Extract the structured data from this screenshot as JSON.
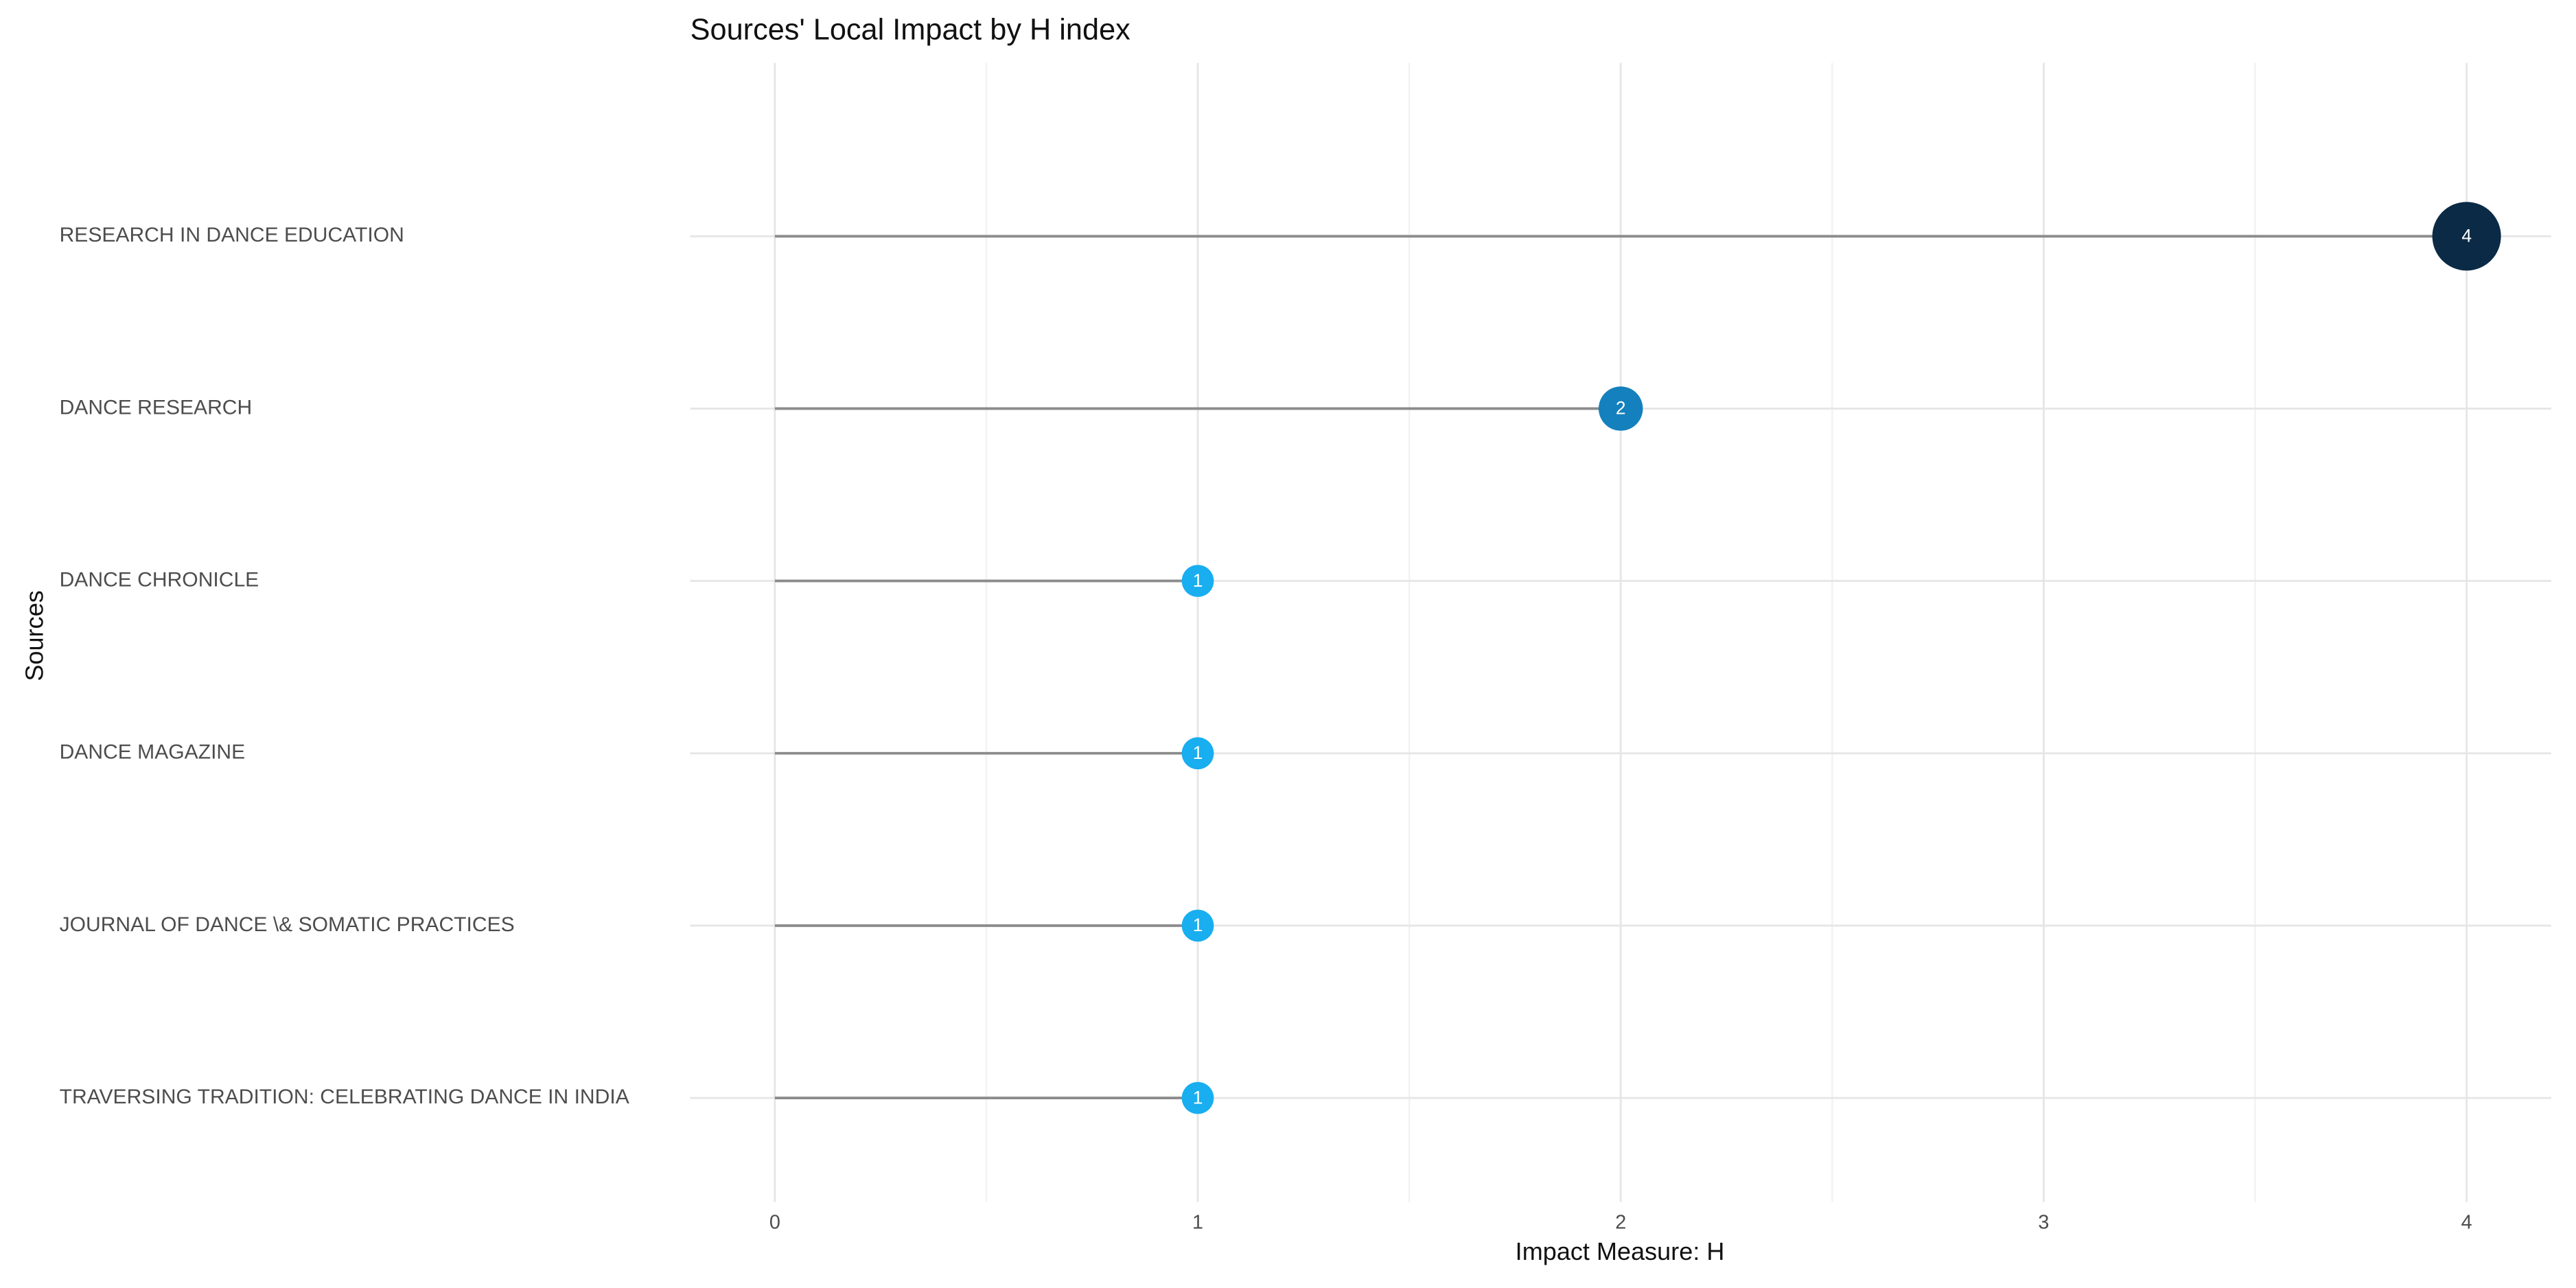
{
  "chart_data": {
    "type": "lollipop",
    "title": "Sources' Local Impact by H index",
    "x_label": "Impact Measure: H",
    "y_label": "Sources",
    "categories": [
      "RESEARCH IN DANCE EDUCATION",
      "DANCE RESEARCH",
      "DANCE CHRONICLE",
      "DANCE MAGAZINE",
      "JOURNAL OF DANCE \\& SOMATIC PRACTICES",
      "TRAVERSING TRADITION: CELEBRATING DANCE IN INDIA"
    ],
    "values": [
      4,
      2,
      1,
      1,
      1,
      1
    ],
    "colors": [
      "#0b2a45",
      "#1480bd",
      "#18aef0",
      "#18aef0",
      "#18aef0",
      "#18aef0"
    ],
    "line_color": "#8c8c8c",
    "xlim": [
      -0.2,
      4.2
    ],
    "xticks": [
      0,
      1,
      2,
      3,
      4
    ],
    "grid": true
  }
}
